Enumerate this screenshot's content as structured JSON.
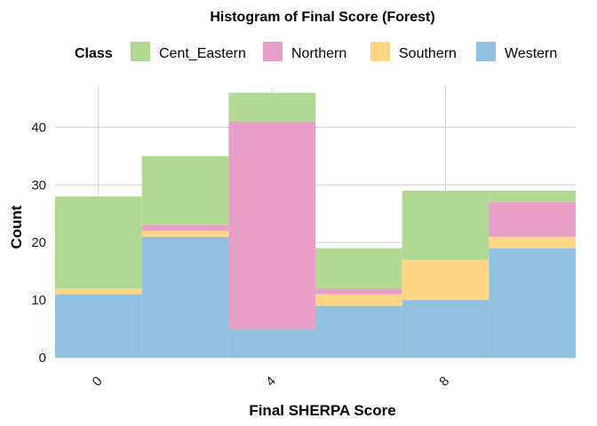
{
  "chart_data": {
    "type": "bar",
    "stacked": true,
    "title": "Histogram of Final Score (Forest)",
    "xlabel": "Final SHERPA Score",
    "ylabel": "Count",
    "legend_title": "Class",
    "legend_position": "top",
    "grid": true,
    "xlim": [
      -1,
      11
    ],
    "ylim": [
      0,
      47
    ],
    "x_ticks": [
      0,
      4,
      8
    ],
    "x_tick_labels": [
      "0",
      "4",
      "8"
    ],
    "y_ticks": [
      0,
      10,
      20,
      30,
      40
    ],
    "y_tick_labels": [
      "0",
      "10",
      "20",
      "30",
      "40"
    ],
    "bins": [
      [
        -1,
        1
      ],
      [
        1,
        3
      ],
      [
        3,
        5
      ],
      [
        5,
        7
      ],
      [
        7,
        9
      ],
      [
        9,
        11
      ]
    ],
    "series": [
      {
        "name": "Western",
        "color": "#92c0df",
        "values": [
          11,
          21,
          5,
          9,
          10,
          19
        ]
      },
      {
        "name": "Southern",
        "color": "#fed684",
        "values": [
          1,
          1,
          0,
          2,
          7,
          2
        ]
      },
      {
        "name": "Northern",
        "color": "#e8a0c9",
        "values": [
          0,
          1,
          36,
          1,
          0,
          6
        ]
      },
      {
        "name": "Cent_Eastern",
        "color": "#b2d993",
        "values": [
          16,
          12,
          5,
          7,
          12,
          2
        ]
      }
    ],
    "legend_order": [
      "Cent_Eastern",
      "Northern",
      "Southern",
      "Western"
    ]
  }
}
